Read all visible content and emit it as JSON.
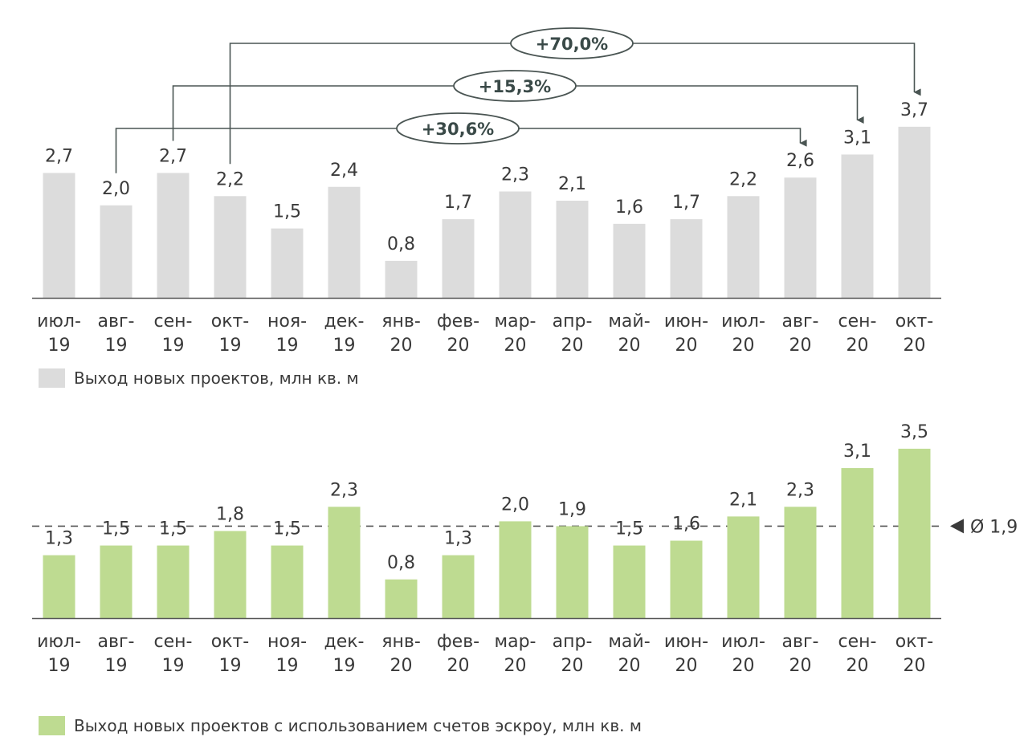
{
  "chart_data": [
    {
      "type": "bar",
      "categories": [
        [
          "июл-",
          "19"
        ],
        [
          "авг-",
          "19"
        ],
        [
          "сен-",
          "19"
        ],
        [
          "окт-",
          "19"
        ],
        [
          "ноя-",
          "19"
        ],
        [
          "дек-",
          "19"
        ],
        [
          "янв-",
          "20"
        ],
        [
          "фев-",
          "20"
        ],
        [
          "мар-",
          "20"
        ],
        [
          "апр-",
          "20"
        ],
        [
          "май-",
          "20"
        ],
        [
          "июн-",
          "20"
        ],
        [
          "июл-",
          "20"
        ],
        [
          "авг-",
          "20"
        ],
        [
          "сен-",
          "20"
        ],
        [
          "окт-",
          "20"
        ]
      ],
      "series": [
        {
          "name": "Выход новых проектов, млн кв. м",
          "values": [
            2.7,
            2.0,
            2.7,
            2.2,
            1.5,
            2.4,
            0.8,
            1.7,
            2.3,
            2.1,
            1.6,
            1.7,
            2.2,
            2.6,
            3.1,
            3.7
          ],
          "labels": [
            "2,7",
            "2,0",
            "2,7",
            "2,2",
            "1,5",
            "2,4",
            "0,8",
            "1,7",
            "2,3",
            "2,1",
            "1,6",
            "1,7",
            "2,2",
            "2,6",
            "3,1",
            "3,7"
          ],
          "color": "#dcdcdc"
        }
      ],
      "annotations": [
        {
          "text": "+70,0%",
          "from": "окт-19",
          "to": "окт-20"
        },
        {
          "text": "+15,3%",
          "from": "сен-19",
          "to": "сен-20"
        },
        {
          "text": "+30,6%",
          "from": "авг-19",
          "to": "авг-20"
        }
      ],
      "ylim": [
        0,
        3.7
      ],
      "legend_position": "bottom-left",
      "grid": false
    },
    {
      "type": "bar",
      "categories": [
        [
          "июл-",
          "19"
        ],
        [
          "авг-",
          "19"
        ],
        [
          "сен-",
          "19"
        ],
        [
          "окт-",
          "19"
        ],
        [
          "ноя-",
          "19"
        ],
        [
          "дек-",
          "19"
        ],
        [
          "янв-",
          "20"
        ],
        [
          "фев-",
          "20"
        ],
        [
          "мар-",
          "20"
        ],
        [
          "апр-",
          "20"
        ],
        [
          "май-",
          "20"
        ],
        [
          "июн-",
          "20"
        ],
        [
          "июл-",
          "20"
        ],
        [
          "авг-",
          "20"
        ],
        [
          "сен-",
          "20"
        ],
        [
          "окт-",
          "20"
        ]
      ],
      "series": [
        {
          "name": "Выход новых проектов с использованием счетов эскроу, млн кв. м",
          "values": [
            1.3,
            1.5,
            1.5,
            1.8,
            1.5,
            2.3,
            0.8,
            1.3,
            2.0,
            1.9,
            1.5,
            1.6,
            2.1,
            2.3,
            3.1,
            3.5
          ],
          "labels": [
            "1,3",
            "1,5",
            "1,5",
            "1,8",
            "1,5",
            "2,3",
            "0,8",
            "1,3",
            "2,0",
            "1,9",
            "1,5",
            "1,6",
            "2,1",
            "2,3",
            "3,1",
            "3,5"
          ],
          "color": "#bedb91"
        }
      ],
      "reference_line": {
        "value": 1.9,
        "label": "Ø 1,9",
        "style": "dashed"
      },
      "ylim": [
        0,
        3.5
      ],
      "legend_position": "bottom-left",
      "grid": false
    }
  ],
  "colors": {
    "bar_grey": "#dcdcdc",
    "bar_green": "#bedb91",
    "axis": "#555555",
    "connector": "#4a5553",
    "text": "#3a3a3a"
  }
}
